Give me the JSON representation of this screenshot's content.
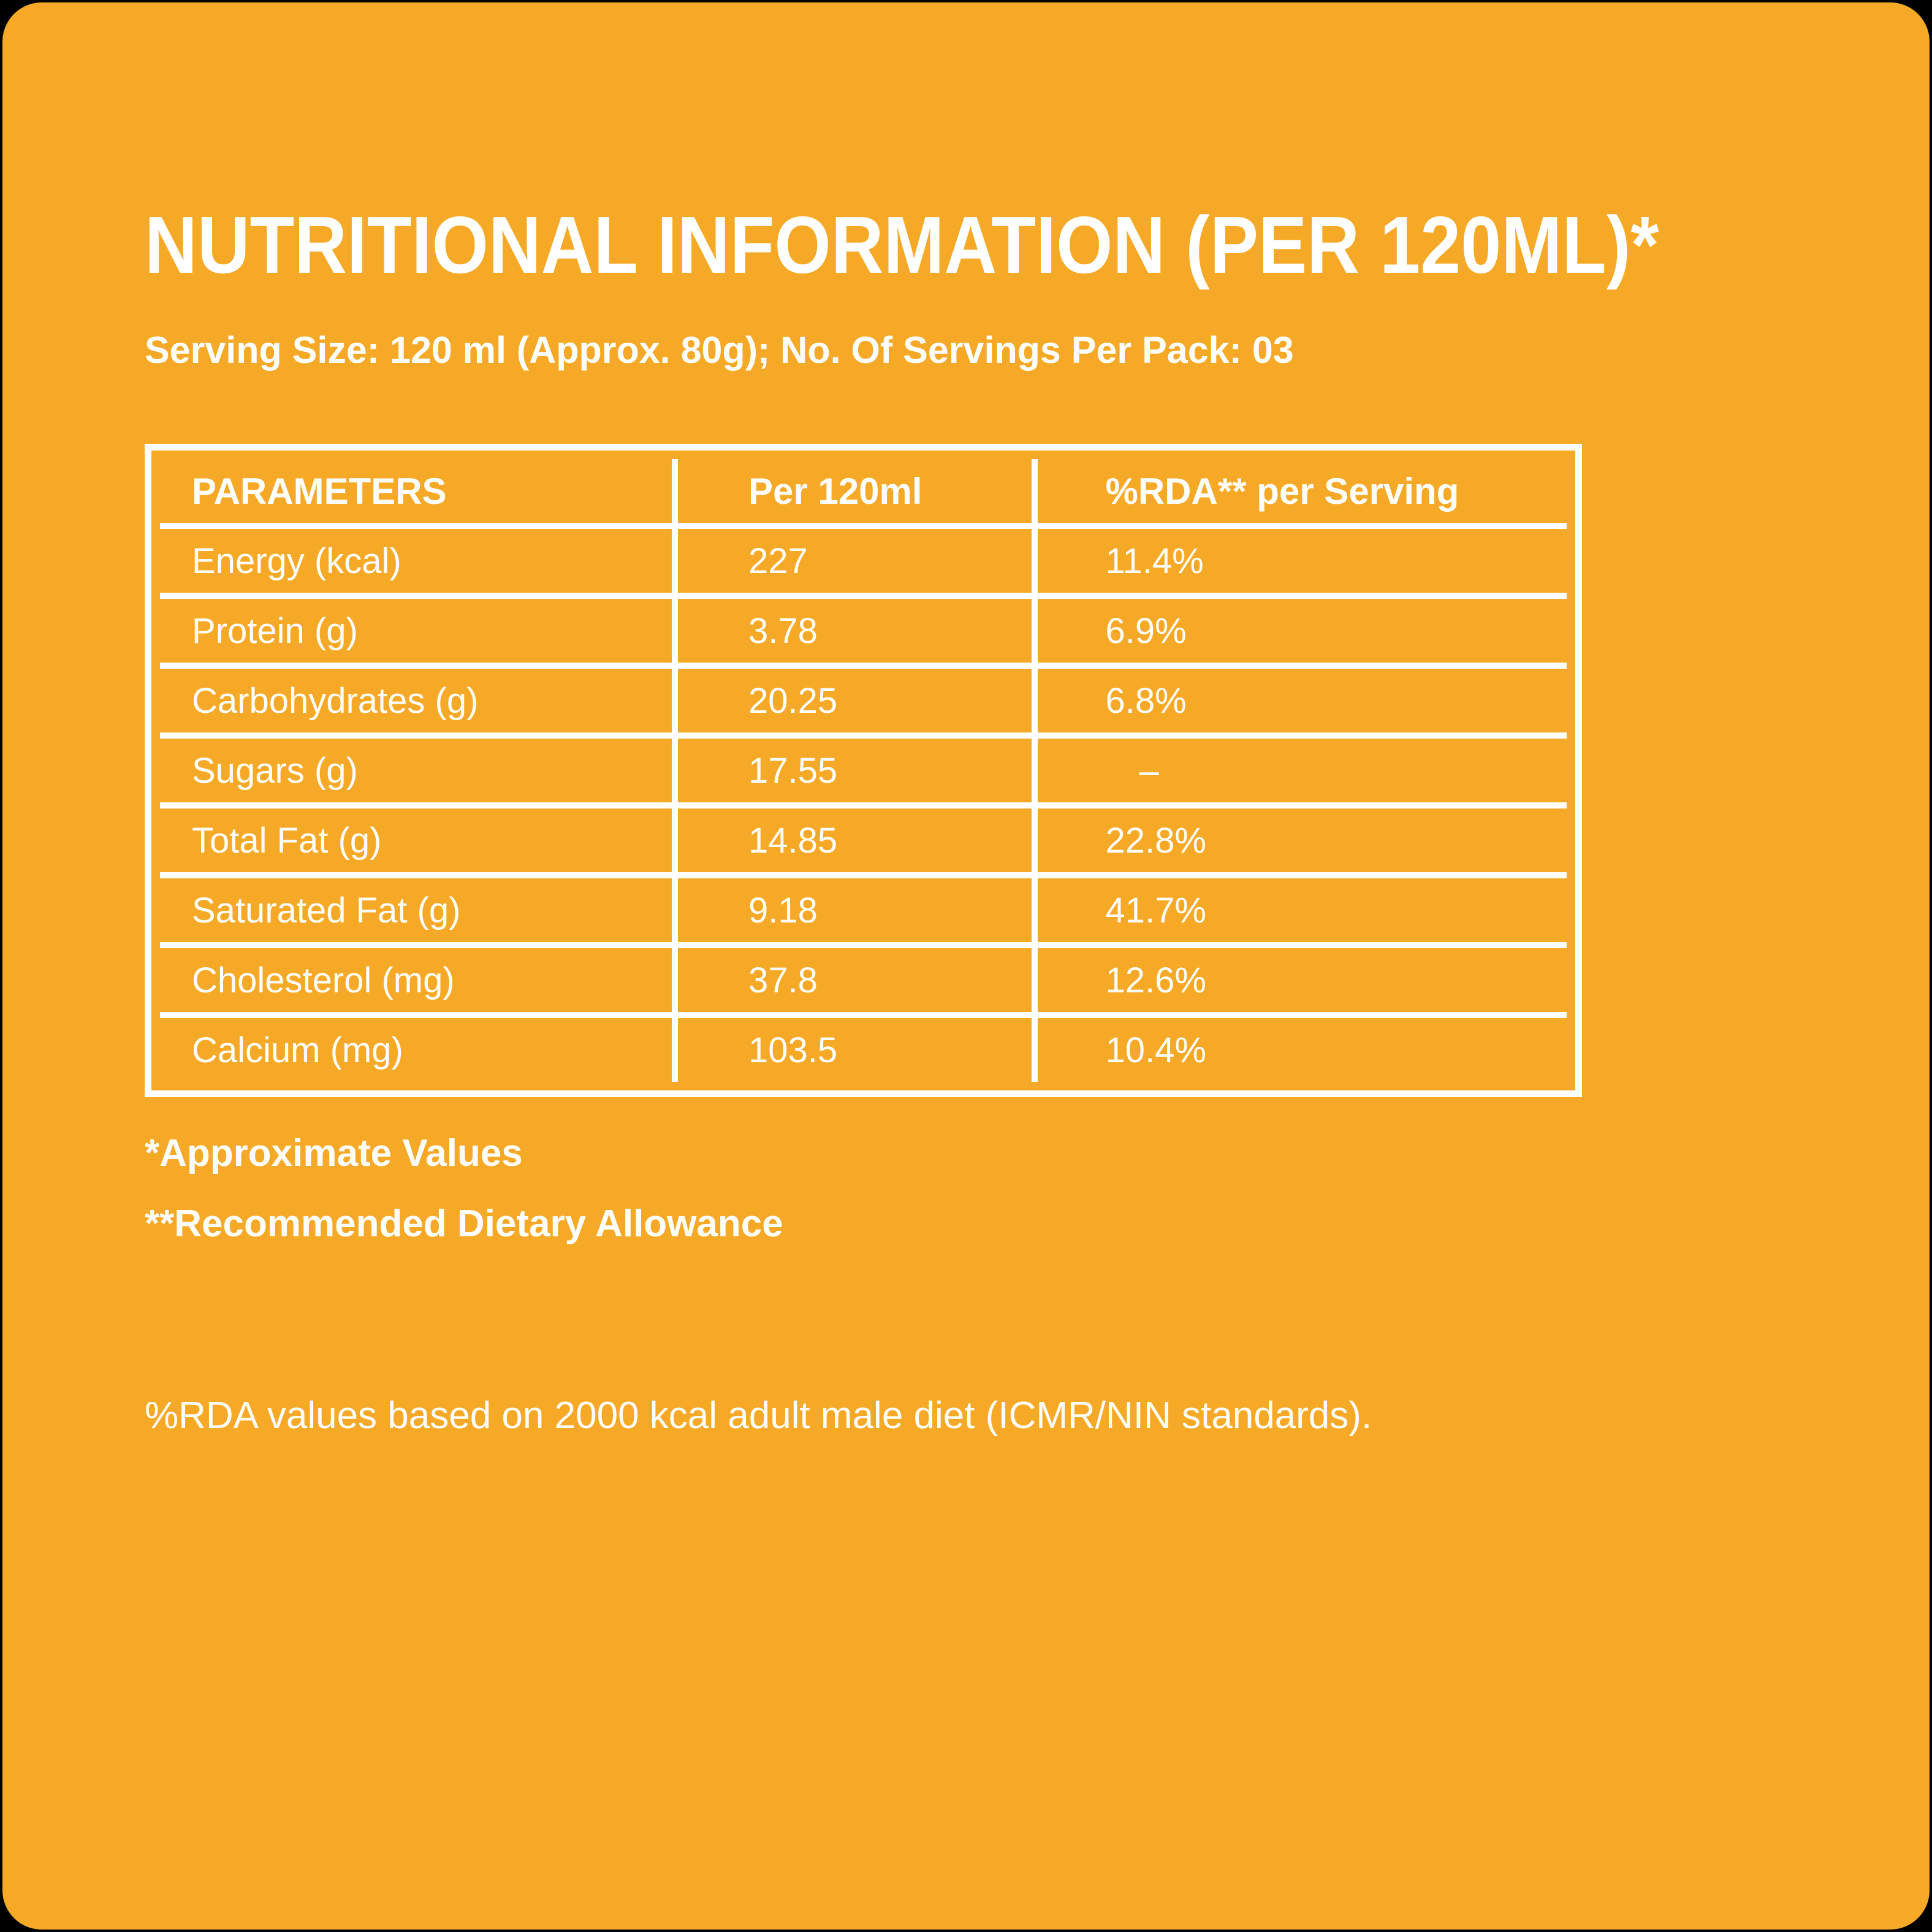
{
  "page": {
    "background_color": "#000000",
    "card_color": "#F6A926",
    "text_color": "#FFFFFF",
    "border_color": "#FFFFFF"
  },
  "header": {
    "title": "NUTRITIONAL INFORMATION (PER 120ML)*",
    "serving_info": "Serving Size: 120 ml (Approx. 80g); No. Of Servings Per Pack: 03"
  },
  "table": {
    "columns": [
      "PARAMETERS",
      "Per 120ml",
      "%RDA** per Serving"
    ],
    "rows": [
      {
        "parameter": "Energy (kcal)",
        "per_120ml": "227",
        "rda": "11.4%"
      },
      {
        "parameter": "Protein (g)",
        "per_120ml": "3.78",
        "rda": "6.9%"
      },
      {
        "parameter": "Carbohydrates (g)",
        "per_120ml": "20.25",
        "rda": "6.8%"
      },
      {
        "parameter": "Sugars (g)",
        "per_120ml": "17.55",
        "rda": "–"
      },
      {
        "parameter": "Total Fat (g)",
        "per_120ml": "14.85",
        "rda": "22.8%"
      },
      {
        "parameter": "Saturated Fat (g)",
        "per_120ml": "9.18",
        "rda": "41.7%"
      },
      {
        "parameter": "Cholesterol (mg)",
        "per_120ml": "37.8",
        "rda": "12.6%"
      },
      {
        "parameter": "Calcium (mg)",
        "per_120ml": "103.5",
        "rda": "10.4%"
      }
    ]
  },
  "footnotes": {
    "approximate": "*Approximate Values",
    "rda": "**Recommended Dietary Allowance"
  },
  "disclaimer": "%RDA values based on 2000 kcal adult male diet (ICMR/NIN standards)."
}
